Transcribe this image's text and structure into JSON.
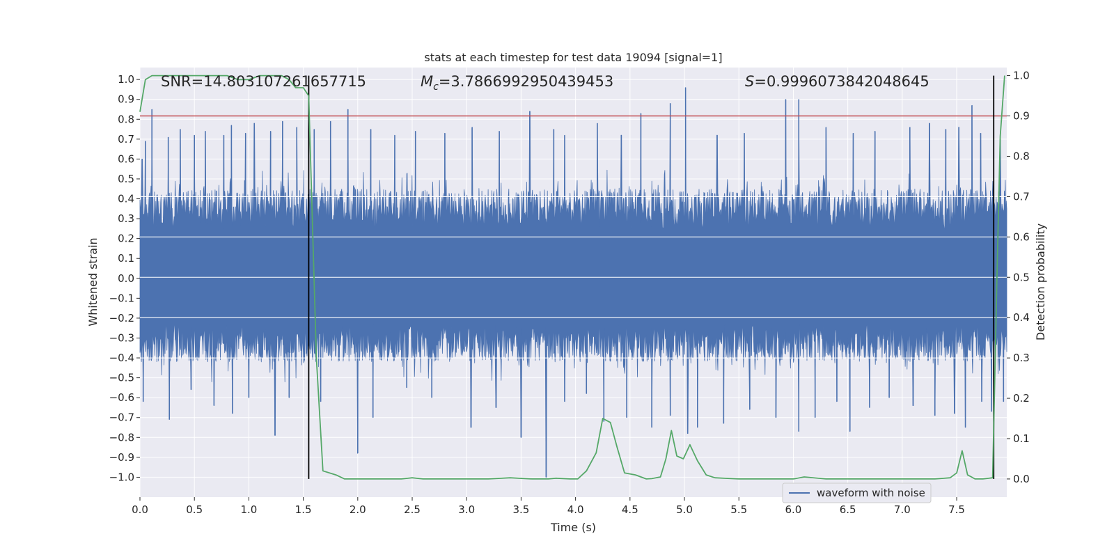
{
  "chart_data": {
    "type": "line",
    "title": "stats at each timestep for test data 19094 [signal=1]",
    "xlabel": "Time (s)",
    "ylabel_left": "Whitened strain",
    "ylabel_right": "Detection probability",
    "xlim": [
      0,
      7.96
    ],
    "ylim_left": [
      -1.1,
      1.06
    ],
    "ylim_right": [
      -0.045,
      1.02
    ],
    "x_ticks": [
      "0.0",
      "0.5",
      "1.0",
      "1.5",
      "2.0",
      "2.5",
      "3.0",
      "3.5",
      "4.0",
      "4.5",
      "5.0",
      "5.5",
      "6.0",
      "6.5",
      "7.0",
      "7.5"
    ],
    "x_tick_values": [
      0,
      0.5,
      1,
      1.5,
      2,
      2.5,
      3,
      3.5,
      4,
      4.5,
      5,
      5.5,
      6,
      6.5,
      7,
      7.5
    ],
    "y_left_ticks": [
      "1.0",
      "0.9",
      "0.8",
      "0.7",
      "0.6",
      "0.5",
      "0.4",
      "0.3",
      "0.2",
      "0.1",
      "0.0",
      "−0.1",
      "−0.2",
      "−0.3",
      "−0.4",
      "−0.5",
      "−0.6",
      "−0.7",
      "−0.8",
      "−0.9",
      "−1.0"
    ],
    "y_left_tick_values": [
      1,
      0.9,
      0.8,
      0.7,
      0.6,
      0.5,
      0.4,
      0.3,
      0.2,
      0.1,
      0,
      -0.1,
      -0.2,
      -0.3,
      -0.4,
      -0.5,
      -0.6,
      -0.7,
      -0.8,
      -0.9,
      -1.0
    ],
    "y_right_ticks": [
      "1.0",
      "0.9",
      "0.8",
      "0.7",
      "0.6",
      "0.5",
      "0.4",
      "0.3",
      "0.2",
      "0.1",
      "0.0"
    ],
    "y_right_tick_values": [
      1,
      0.9,
      0.8,
      0.7,
      0.6,
      0.5,
      0.4,
      0.3,
      0.2,
      0.1,
      0
    ],
    "annotations": {
      "snr": "SNR=14.803107261657715",
      "mc_symbol": "M",
      "mc_sub": "c",
      "mc_value": "=3.7866992950439453",
      "s_symbol": "S",
      "s_value": "=0.9996073842048645"
    },
    "legend": {
      "label": "waveform with noise",
      "placement": "lower-right"
    },
    "threshold": {
      "value": 0.9,
      "axis": "right",
      "color": "#c44e52"
    },
    "vertical_lines": [
      1.55,
      7.84
    ],
    "waveform": {
      "name": "waveform with noise",
      "color": "#4c72b0",
      "x_range": [
        0,
        7.96
      ],
      "typical_upper": 0.45,
      "typical_lower": -0.42,
      "peaks": [
        [
          0.02,
          0.6
        ],
        [
          0.05,
          0.69
        ],
        [
          0.11,
          0.85
        ],
        [
          0.26,
          0.71
        ],
        [
          0.37,
          0.75
        ],
        [
          0.5,
          0.72
        ],
        [
          0.6,
          0.74
        ],
        [
          0.77,
          0.72
        ],
        [
          0.84,
          0.77
        ],
        [
          0.97,
          0.73
        ],
        [
          1.05,
          0.78
        ],
        [
          1.2,
          0.74
        ],
        [
          1.31,
          0.79
        ],
        [
          1.44,
          0.76
        ],
        [
          1.6,
          0.75
        ],
        [
          1.75,
          0.79
        ],
        [
          1.91,
          0.85
        ],
        [
          2.12,
          0.75
        ],
        [
          2.34,
          0.72
        ],
        [
          2.53,
          0.74
        ],
        [
          2.8,
          0.73
        ],
        [
          3.05,
          0.76
        ],
        [
          3.3,
          0.74
        ],
        [
          3.58,
          0.84
        ],
        [
          3.8,
          0.75
        ],
        [
          3.9,
          0.72
        ],
        [
          4.2,
          0.78
        ],
        [
          4.42,
          0.72
        ],
        [
          4.6,
          0.83
        ],
        [
          4.87,
          0.88
        ],
        [
          5.01,
          0.96
        ],
        [
          5.3,
          0.72
        ],
        [
          5.55,
          0.73
        ],
        [
          5.93,
          0.9
        ],
        [
          6.05,
          0.9
        ],
        [
          6.3,
          0.76
        ],
        [
          6.55,
          0.73
        ],
        [
          6.75,
          0.74
        ],
        [
          7.07,
          0.76
        ],
        [
          7.25,
          0.78
        ],
        [
          7.4,
          0.75
        ],
        [
          7.52,
          0.76
        ],
        [
          7.64,
          0.87
        ],
        [
          7.72,
          0.73
        ],
        [
          7.9,
          0.7
        ]
      ],
      "troughs": [
        [
          0.03,
          -0.62
        ],
        [
          0.27,
          -0.71
        ],
        [
          0.47,
          -0.56
        ],
        [
          0.68,
          -0.64
        ],
        [
          0.85,
          -0.68
        ],
        [
          1.0,
          -0.6
        ],
        [
          1.24,
          -0.79
        ],
        [
          1.37,
          -0.6
        ],
        [
          1.66,
          -0.62
        ],
        [
          2.0,
          -0.88
        ],
        [
          2.14,
          -0.7
        ],
        [
          2.45,
          -0.55
        ],
        [
          2.68,
          -0.6
        ],
        [
          3.04,
          -0.75
        ],
        [
          3.27,
          -0.65
        ],
        [
          3.5,
          -0.8
        ],
        [
          3.73,
          -1.0
        ],
        [
          3.9,
          -0.62
        ],
        [
          4.1,
          -0.58
        ],
        [
          4.26,
          -0.72
        ],
        [
          4.47,
          -0.7
        ],
        [
          4.7,
          -0.75
        ],
        [
          4.87,
          -0.69
        ],
        [
          5.03,
          -0.78
        ],
        [
          5.12,
          -0.75
        ],
        [
          5.36,
          -0.73
        ],
        [
          5.6,
          -0.66
        ],
        [
          5.84,
          -0.7
        ],
        [
          6.05,
          -0.77
        ],
        [
          6.2,
          -0.7
        ],
        [
          6.4,
          -0.62
        ],
        [
          6.52,
          -0.77
        ],
        [
          6.7,
          -0.65
        ],
        [
          6.88,
          -0.6
        ],
        [
          7.1,
          -0.64
        ],
        [
          7.3,
          -0.69
        ],
        [
          7.48,
          -0.68
        ],
        [
          7.58,
          -0.75
        ],
        [
          7.73,
          -0.62
        ],
        [
          7.82,
          -0.67
        ],
        [
          7.93,
          -0.62
        ]
      ]
    },
    "probability": {
      "name": "detection probability",
      "color": "#55a868",
      "x": [
        0,
        0.05,
        0.11,
        0.2,
        0.4,
        0.6,
        0.8,
        0.9,
        1.0,
        1.1,
        1.2,
        1.3,
        1.37,
        1.43,
        1.5,
        1.55,
        1.62,
        1.68,
        1.8,
        1.88,
        2.0,
        2.2,
        2.4,
        2.5,
        2.6,
        2.8,
        3.0,
        3.2,
        3.4,
        3.6,
        3.75,
        3.82,
        3.95,
        4.02,
        4.1,
        4.19,
        4.25,
        4.32,
        4.38,
        4.45,
        4.55,
        4.65,
        4.7,
        4.78,
        4.83,
        4.88,
        4.93,
        4.99,
        5.05,
        5.12,
        5.2,
        5.28,
        5.5,
        5.8,
        6.0,
        6.1,
        6.3,
        6.5,
        6.7,
        6.9,
        7.1,
        7.3,
        7.44,
        7.5,
        7.55,
        7.6,
        7.67,
        7.74,
        7.83,
        7.87,
        7.9,
        7.94
      ],
      "y": [
        0.91,
        0.99,
        1.0,
        1.0,
        1.0,
        1.0,
        1.0,
        0.99,
        0.99,
        1.0,
        1.0,
        1.0,
        0.99,
        0.97,
        0.97,
        0.95,
        0.3,
        0.02,
        0.01,
        0.0,
        0.0,
        0.0,
        0.0,
        0.003,
        0.0,
        0.0,
        0.0,
        0.0,
        0.003,
        0.0,
        0.0,
        0.002,
        0.0,
        0.0,
        0.02,
        0.065,
        0.15,
        0.14,
        0.08,
        0.015,
        0.01,
        0.0,
        0.001,
        0.005,
        0.05,
        0.12,
        0.057,
        0.05,
        0.085,
        0.045,
        0.01,
        0.003,
        0.0,
        0.0,
        0.0,
        0.005,
        0.0,
        0.0,
        0.0,
        0.0,
        0.0,
        0.0,
        0.003,
        0.015,
        0.07,
        0.01,
        0.0,
        0.0,
        0.003,
        0.5,
        0.85,
        1.0
      ]
    }
  }
}
